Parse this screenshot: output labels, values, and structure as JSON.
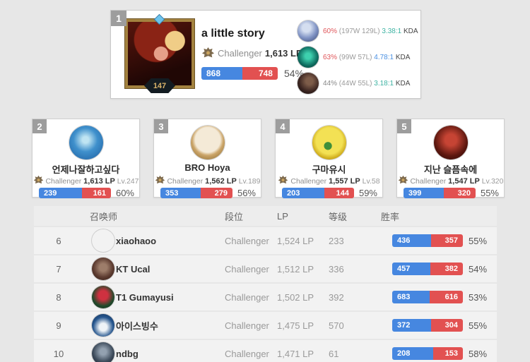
{
  "colors": {
    "bar_blue": "#4687e0",
    "bar_red": "#e25151",
    "accent_red": "#e0565a",
    "kda_teal": "#3cb2a2",
    "kda_blue": "#4a90e2",
    "badge_gray": "#9d9d9d"
  },
  "top_player": {
    "rank": "1",
    "level": "147",
    "name": "a little story",
    "tier": "Challenger",
    "lp": "1,613 LP",
    "wins": "868",
    "losses": "748",
    "win_pct": "54%",
    "champions": [
      {
        "win_pct": "60%",
        "record": "(197W 129L)",
        "kda": "3.38:1",
        "kda_label": "KDA",
        "pct_tone": "hot",
        "kda_tone": "teal",
        "icon": "pale-blue-champion-icon"
      },
      {
        "win_pct": "63%",
        "record": "(99W 57L)",
        "kda": "4.78:1",
        "kda_label": "KDA",
        "pct_tone": "hot",
        "kda_tone": "blue",
        "icon": "teal-green-champion-icon"
      },
      {
        "win_pct": "44%",
        "record": "(44W 55L)",
        "kda": "3.18:1",
        "kda_label": "KDA",
        "pct_tone": "muted",
        "kda_tone": "teal",
        "icon": "dark-brown-champion-icon"
      }
    ]
  },
  "cards": [
    {
      "rank": "2",
      "name": "언제나잘하고싶다",
      "tier": "Challenger",
      "lp": "1,613 LP",
      "level": "Lv.247",
      "wins": "239",
      "losses": "161",
      "win_pct": "60%",
      "icon": "blue-poro-avatar"
    },
    {
      "rank": "3",
      "name": "BRO Hoya",
      "tier": "Challenger",
      "lp": "1,562 LP",
      "level": "Lv.189",
      "wins": "353",
      "losses": "279",
      "win_pct": "56%",
      "icon": "poro-face-avatar"
    },
    {
      "rank": "4",
      "name": "구마유시",
      "tier": "Challenger",
      "lp": "1,557 LP",
      "level": "Lv.58",
      "wins": "203",
      "losses": "144",
      "win_pct": "59%",
      "icon": "golden-sprout-avatar"
    },
    {
      "rank": "5",
      "name": "지난 슬픔속에",
      "tier": "Challenger",
      "lp": "1,547 LP",
      "level": "Lv.320",
      "wins": "399",
      "losses": "320",
      "win_pct": "55%",
      "icon": "red-mech-avatar"
    }
  ],
  "table": {
    "headers": {
      "summoner": "召唤师",
      "tier": "段位",
      "lp": "LP",
      "level": "等级",
      "winrate": "胜率"
    },
    "rows": [
      {
        "rank": "6",
        "name": "xiaohaoo",
        "tier": "Challenger",
        "lp": "1,524 LP",
        "level": "233",
        "wins": "436",
        "losses": "357",
        "win_pct": "55%",
        "icon": "blue-haired-girl-avatar"
      },
      {
        "rank": "7",
        "name": "KT Ucal",
        "tier": "Challenger",
        "lp": "1,512 LP",
        "level": "336",
        "wins": "457",
        "losses": "382",
        "win_pct": "54%",
        "icon": "brown-face-avatar"
      },
      {
        "rank": "8",
        "name": "T1 Gumayusi",
        "tier": "Challenger",
        "lp": "1,502 LP",
        "level": "392",
        "wins": "683",
        "losses": "616",
        "win_pct": "53%",
        "icon": "red-rose-avatar"
      },
      {
        "rank": "9",
        "name": "아이스빙수",
        "tier": "Challenger",
        "lp": "1,475 LP",
        "level": "570",
        "wins": "372",
        "losses": "304",
        "win_pct": "55%",
        "icon": "penguin-avatar"
      },
      {
        "rank": "10",
        "name": "ndbg",
        "tier": "Challenger",
        "lp": "1,471 LP",
        "level": "61",
        "wins": "208",
        "losses": "153",
        "win_pct": "58%",
        "icon": "gray-mech-avatar"
      }
    ]
  }
}
